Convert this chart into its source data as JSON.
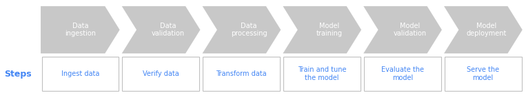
{
  "arrow_labels": [
    "Data\ningestion",
    "Data\nvalidation",
    "Data\nprocessing",
    "Model\ntraining",
    "Model\nvalidation",
    "Model\ndeployment"
  ],
  "box_labels": [
    "Ingest data",
    "Verify data",
    "Transform data",
    "Train and tune\nthe model",
    "Evaluate the\nmodel",
    "Serve the\nmodel"
  ],
  "arrow_color": "#c8c8c8",
  "arrow_text_color": "#ffffff",
  "box_text_color": "#4285f4",
  "box_edge_color": "#c0c0c0",
  "steps_label_color": "#4285f4",
  "steps_label": "Steps",
  "bg_color": "#ffffff",
  "n": 6,
  "fig_width": 7.63,
  "fig_height": 1.39,
  "dpi": 100
}
